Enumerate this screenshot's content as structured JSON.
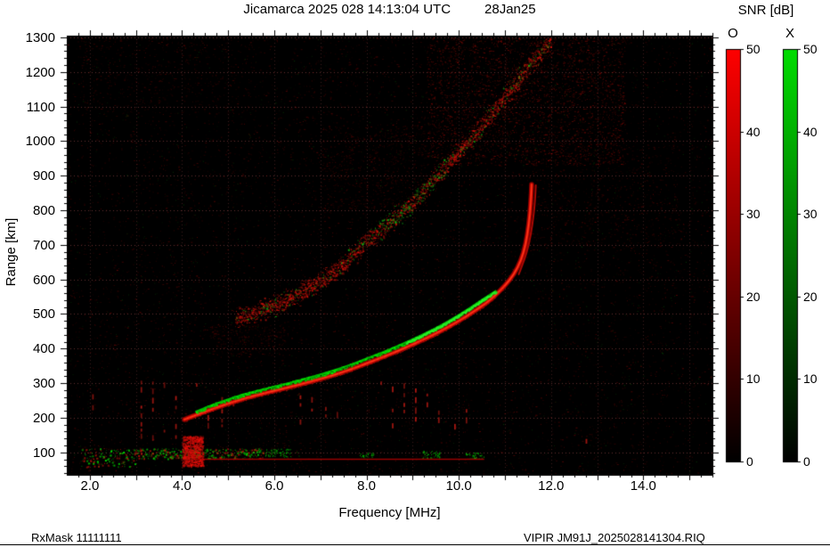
{
  "title": {
    "main": "Jicamarca 2025 028 14:13:04 UTC",
    "date": "28Jan25"
  },
  "footer": {
    "left": "RxMask 11111111",
    "right": "VIPIR  JM91J_2025028141304.RIQ"
  },
  "colorbar": {
    "title": "SNR [dB]",
    "min": 0,
    "max": 50,
    "bars": [
      {
        "label": "O",
        "color": "#ff0000",
        "tick_values": [
          0,
          10,
          20,
          30,
          40,
          50
        ],
        "tick_labels": [
          "0",
          "10",
          "20",
          "30",
          "40",
          "50"
        ]
      },
      {
        "label": "X",
        "color": "#00dd00",
        "tick_values": [
          0,
          10,
          20,
          30,
          40,
          50
        ],
        "tick_labels": [
          "0",
          "10",
          "20",
          "30",
          "40",
          "50"
        ]
      }
    ]
  },
  "chart_data": {
    "type": "heatmap",
    "subtype": "ionogram",
    "title": "Jicamarca 2025 028 14:13:04 UTC 28Jan25",
    "xlabel": "Frequency [MHz]",
    "ylabel": "Range [km]",
    "xlim": [
      1.5,
      15.5
    ],
    "ylim": [
      35,
      1305
    ],
    "x_tick_values": [
      2,
      4,
      6,
      8,
      10,
      12,
      14
    ],
    "x_tick_labels": [
      "2.0",
      "4.0",
      "6.0",
      "8.0",
      "10.0",
      "12.0",
      "14.0"
    ],
    "y_tick_values": [
      100,
      200,
      300,
      400,
      500,
      600,
      700,
      800,
      900,
      1000,
      1100,
      1200,
      1300
    ],
    "grid": true,
    "background": "#000000",
    "series": [
      {
        "name": "F-region O-mode trace",
        "mode": "O",
        "color": "#ee1000",
        "render": "line",
        "width": 5,
        "points": [
          [
            4.05,
            195
          ],
          [
            4.4,
            213
          ],
          [
            4.8,
            232
          ],
          [
            5.2,
            250
          ],
          [
            5.6,
            265
          ],
          [
            6.0,
            278
          ],
          [
            6.4,
            291
          ],
          [
            6.8,
            305
          ],
          [
            7.2,
            320
          ],
          [
            7.6,
            337
          ],
          [
            8.0,
            357
          ],
          [
            8.4,
            378
          ],
          [
            8.8,
            400
          ],
          [
            9.2,
            424
          ],
          [
            9.6,
            450
          ],
          [
            10.0,
            480
          ],
          [
            10.3,
            505
          ],
          [
            10.6,
            532
          ],
          [
            10.8,
            555
          ],
          [
            11.0,
            582
          ],
          [
            11.2,
            615
          ],
          [
            11.35,
            655
          ],
          [
            11.45,
            700
          ],
          [
            11.52,
            760
          ],
          [
            11.56,
            820
          ],
          [
            11.58,
            875
          ]
        ]
      },
      {
        "name": "F-region X-mode trace",
        "mode": "X",
        "color": "#00dd00",
        "render": "speckle-line",
        "width": 2,
        "points": [
          [
            4.3,
            218
          ],
          [
            4.7,
            240
          ],
          [
            5.1,
            258
          ],
          [
            5.5,
            274
          ],
          [
            5.9,
            287
          ],
          [
            6.3,
            300
          ],
          [
            6.7,
            314
          ],
          [
            7.1,
            329
          ],
          [
            7.5,
            346
          ],
          [
            7.9,
            366
          ],
          [
            8.3,
            387
          ],
          [
            8.7,
            409
          ],
          [
            9.1,
            433
          ],
          [
            9.5,
            459
          ],
          [
            9.9,
            489
          ],
          [
            10.2,
            514
          ],
          [
            10.5,
            541
          ],
          [
            10.8,
            567
          ]
        ]
      },
      {
        "name": "O-mode cusp second branch",
        "mode": "O",
        "color": "#c80000",
        "render": "line",
        "width": 2,
        "points": [
          [
            11.3,
            615
          ],
          [
            11.42,
            655
          ],
          [
            11.52,
            700
          ],
          [
            11.6,
            760
          ],
          [
            11.65,
            820
          ],
          [
            11.67,
            872
          ]
        ]
      },
      {
        "name": "second-hop echo band",
        "color": "#b51500",
        "render": "band",
        "halfwidth_km": 34,
        "points": [
          [
            5.15,
            488
          ],
          [
            5.6,
            505
          ],
          [
            6.0,
            525
          ],
          [
            6.5,
            555
          ],
          [
            7.0,
            595
          ],
          [
            7.5,
            645
          ],
          [
            8.0,
            710
          ],
          [
            8.5,
            765
          ],
          [
            9.0,
            825
          ],
          [
            9.5,
            895
          ],
          [
            10.0,
            968
          ],
          [
            10.5,
            1045
          ],
          [
            11.0,
            1128
          ],
          [
            11.5,
            1215
          ],
          [
            12.0,
            1295
          ]
        ]
      },
      {
        "name": "E-region echo band",
        "color": "#00cc00",
        "render": "eband",
        "freq_range": [
          1.8,
          5.75
        ],
        "km_range": [
          82,
          112
        ]
      },
      {
        "name": "E-region thin echo line",
        "color": "#b40000",
        "render": "line",
        "width": 1.5,
        "points": [
          [
            4.3,
            80
          ],
          [
            10.55,
            80
          ]
        ]
      }
    ],
    "blob": {
      "name": "strong interference patch",
      "freq_range": [
        4.0,
        4.45
      ],
      "km_range": [
        60,
        148
      ]
    },
    "green_clusters": [
      [
        5.8,
        6.35,
        88,
        112,
        70
      ],
      [
        9.2,
        9.6,
        82,
        105,
        55
      ],
      [
        10.15,
        10.55,
        82,
        100,
        45
      ],
      [
        7.85,
        8.15,
        85,
        100,
        28
      ]
    ],
    "interference_lines": [
      [
        2.05,
        195,
        295
      ],
      [
        3.1,
        140,
        330
      ],
      [
        3.35,
        120,
        305
      ],
      [
        3.6,
        110,
        320
      ],
      [
        3.85,
        140,
        280
      ],
      [
        4.3,
        110,
        300
      ],
      [
        4.55,
        130,
        280
      ],
      [
        4.85,
        140,
        260
      ],
      [
        5.1,
        150,
        250
      ],
      [
        6.55,
        195,
        265
      ],
      [
        6.8,
        200,
        260
      ],
      [
        7.1,
        205,
        255
      ],
      [
        7.35,
        200,
        245
      ],
      [
        8.3,
        175,
        305
      ],
      [
        8.55,
        180,
        310
      ],
      [
        8.8,
        175,
        300
      ],
      [
        9.05,
        185,
        285
      ],
      [
        9.3,
        190,
        270
      ],
      [
        9.55,
        195,
        255
      ],
      [
        9.9,
        180,
        235
      ],
      [
        10.15,
        185,
        225
      ],
      [
        12.75,
        120,
        190
      ]
    ],
    "diffuse_regions": [
      {
        "f": [
          9.3,
          13.6
        ],
        "km": [
          930,
          1300
        ],
        "n": 2600,
        "alpha": 0.5
      },
      {
        "f": [
          7.0,
          9.3
        ],
        "km": [
          800,
          1050
        ],
        "n": 700,
        "alpha": 0.3
      },
      {
        "f": [
          1.8,
          5.5
        ],
        "km": [
          1080,
          1300
        ],
        "n": 350,
        "alpha": 0.28
      },
      {
        "f": [
          11.5,
          14.8
        ],
        "km": [
          700,
          1000
        ],
        "n": 500,
        "alpha": 0.3
      },
      {
        "f": [
          4.6,
          6.2
        ],
        "km": [
          380,
          470
        ],
        "n": 250,
        "alpha": 0.3
      }
    ],
    "noise": {
      "seed": 1234,
      "red_points": 8000,
      "green_points": 1100
    }
  }
}
